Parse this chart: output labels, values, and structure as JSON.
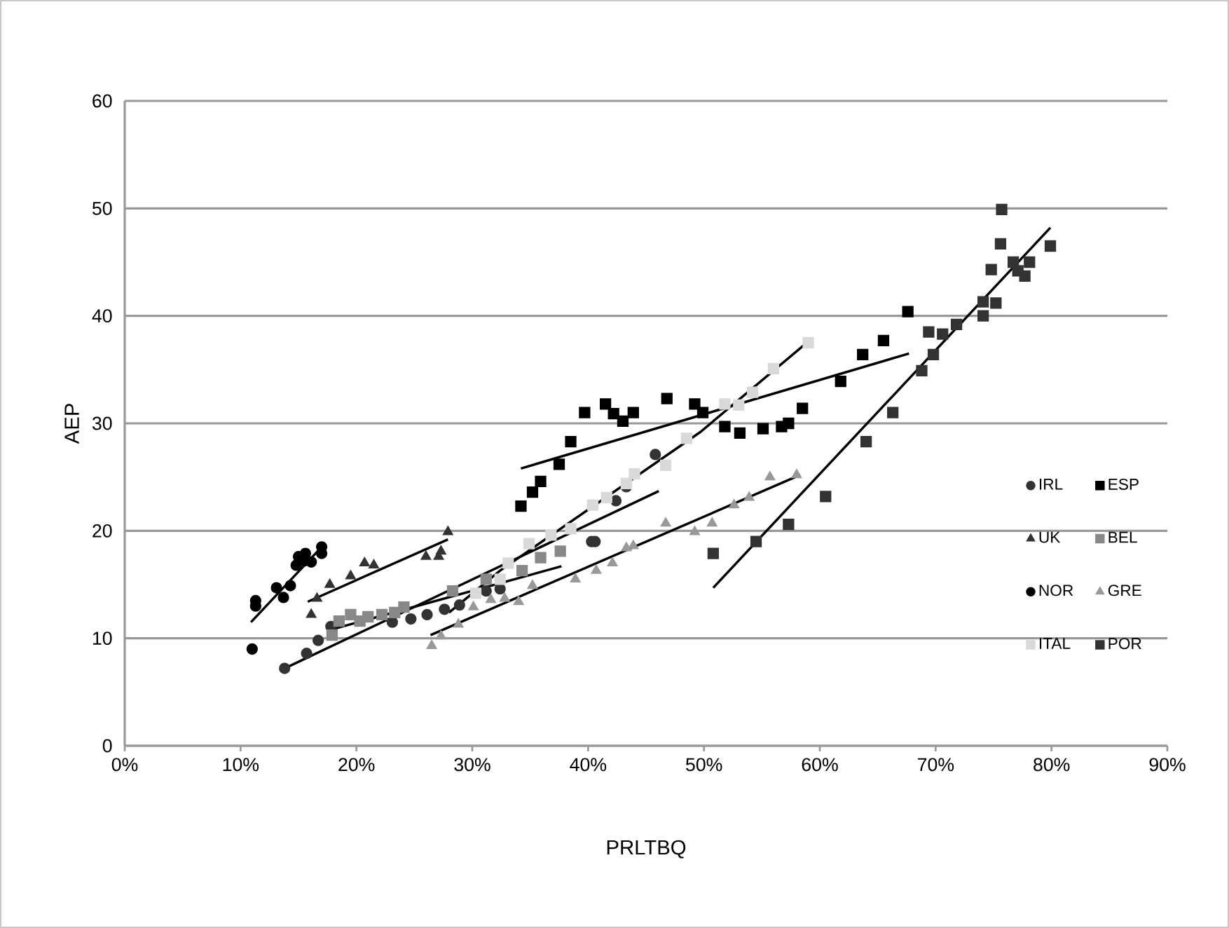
{
  "chart_data": {
    "type": "scatter",
    "xlabel": "PRLTBQ",
    "ylabel": "AEP",
    "xlim": [
      0,
      0.9
    ],
    "ylim": [
      0,
      60
    ],
    "xticks": [
      {
        "value": 0,
        "label": "0%"
      },
      {
        "value": 0.1,
        "label": "10%"
      },
      {
        "value": 0.2,
        "label": "20%"
      },
      {
        "value": 0.3,
        "label": "30%"
      },
      {
        "value": 0.4,
        "label": "40%"
      },
      {
        "value": 0.5,
        "label": "50%"
      },
      {
        "value": 0.6,
        "label": "60%"
      },
      {
        "value": 0.7,
        "label": "70%"
      },
      {
        "value": 0.8,
        "label": "80%"
      },
      {
        "value": 0.9,
        "label": "90%"
      }
    ],
    "yticks": [
      0,
      10,
      20,
      30,
      40,
      50,
      60
    ],
    "grid": "y",
    "legend": "right",
    "series": [
      {
        "name": "IRL",
        "color": "#333333",
        "marker": "circle",
        "x": [
          0.138,
          0.157,
          0.167,
          0.178,
          0.231,
          0.247,
          0.261,
          0.276,
          0.289,
          0.312,
          0.324,
          0.403,
          0.406,
          0.424,
          0.433,
          0.458
        ],
        "values": [
          7.2,
          8.6,
          9.8,
          11.1,
          11.5,
          11.8,
          12.2,
          12.7,
          13.1,
          14.4,
          14.6,
          19.0,
          19.0,
          22.8,
          24.1,
          27.1
        ]
      },
      {
        "name": "ESP",
        "color": "#000000",
        "marker": "square",
        "x": [
          0.342,
          0.352,
          0.359,
          0.375,
          0.385,
          0.397,
          0.415,
          0.422,
          0.43,
          0.439,
          0.468,
          0.492,
          0.499,
          0.518,
          0.531,
          0.551,
          0.567,
          0.573,
          0.585,
          0.618,
          0.637,
          0.655,
          0.676
        ],
        "values": [
          22.3,
          23.6,
          24.6,
          26.2,
          28.3,
          31.0,
          31.8,
          30.9,
          30.2,
          31.0,
          32.3,
          31.8,
          31.0,
          29.7,
          29.1,
          29.5,
          29.7,
          30.0,
          31.4,
          33.9,
          36.4,
          37.7,
          40.4
        ]
      },
      {
        "name": "UK",
        "color": "#333333",
        "marker": "triangle",
        "x": [
          0.161,
          0.166,
          0.177,
          0.195,
          0.207,
          0.215,
          0.26,
          0.271,
          0.273,
          0.279
        ],
        "values": [
          12.2,
          13.7,
          15.0,
          15.8,
          17.0,
          16.8,
          17.6,
          17.6,
          18.1,
          19.9
        ]
      },
      {
        "name": "BEL",
        "color": "#888888",
        "marker": "square",
        "x": [
          0.179,
          0.185,
          0.195,
          0.203,
          0.21,
          0.222,
          0.233,
          0.241,
          0.283,
          0.312,
          0.343,
          0.359,
          0.376
        ],
        "values": [
          10.3,
          11.6,
          12.2,
          11.6,
          12.0,
          12.2,
          12.4,
          12.9,
          14.4,
          15.5,
          16.3,
          17.5,
          18.1
        ]
      },
      {
        "name": "NOR",
        "color": "#000000",
        "marker": "circle",
        "x": [
          0.11,
          0.113,
          0.113,
          0.131,
          0.137,
          0.143,
          0.148,
          0.15,
          0.155,
          0.156,
          0.161,
          0.17,
          0.17
        ],
        "values": [
          9.0,
          13.5,
          13.0,
          14.7,
          13.8,
          14.9,
          16.8,
          17.6,
          17.2,
          17.9,
          17.1,
          18.5,
          17.9
        ]
      },
      {
        "name": "GRE",
        "color": "#999999",
        "marker": "triangle",
        "x": [
          0.265,
          0.273,
          0.288,
          0.301,
          0.316,
          0.328,
          0.34,
          0.352,
          0.389,
          0.407,
          0.421,
          0.433,
          0.439,
          0.467,
          0.492,
          0.507,
          0.526,
          0.539,
          0.557,
          0.58
        ],
        "values": [
          9.3,
          10.2,
          11.3,
          12.9,
          13.6,
          13.7,
          13.4,
          14.9,
          15.5,
          16.3,
          17.0,
          18.4,
          18.6,
          20.7,
          19.9,
          20.7,
          22.4,
          23.1,
          25.0,
          25.2
        ]
      },
      {
        "name": "ITAL",
        "color": "#d9d9d9",
        "marker": "square",
        "x": [
          0.303,
          0.324,
          0.331,
          0.349,
          0.368,
          0.385,
          0.404,
          0.416,
          0.433,
          0.44,
          0.467,
          0.485,
          0.518,
          0.53,
          0.542,
          0.56,
          0.59
        ],
        "values": [
          14.2,
          15.5,
          17.0,
          18.8,
          19.6,
          20.2,
          22.4,
          23.1,
          24.4,
          25.3,
          26.1,
          28.6,
          31.8,
          31.7,
          32.9,
          35.1,
          37.5
        ]
      },
      {
        "name": "POR",
        "color": "#333333",
        "marker": "square",
        "x": [
          0.508,
          0.545,
          0.573,
          0.605,
          0.64,
          0.663,
          0.688,
          0.698,
          0.694,
          0.706,
          0.718,
          0.741,
          0.741,
          0.752,
          0.748,
          0.756,
          0.757,
          0.767,
          0.771,
          0.777,
          0.781,
          0.799
        ],
        "values": [
          17.9,
          19.0,
          20.6,
          23.2,
          28.3,
          31.0,
          34.9,
          36.4,
          38.5,
          38.3,
          39.2,
          40.0,
          41.3,
          41.2,
          44.3,
          46.7,
          49.9,
          45.0,
          44.2,
          43.7,
          45.0,
          46.5
        ]
      },
      {
        "type": "line",
        "color": "#000000",
        "marker": "none",
        "x": [
          0.109,
          0.17
        ],
        "values": [
          11.5,
          18.5
        ]
      },
      {
        "type": "line",
        "color": "#000000",
        "marker": "none",
        "x": [
          0.158,
          0.279
        ],
        "values": [
          13.4,
          19.2
        ]
      },
      {
        "type": "line",
        "color": "#000000",
        "marker": "none",
        "x": [
          0.138,
          0.461
        ],
        "values": [
          7.2,
          23.7
        ]
      },
      {
        "type": "line",
        "color": "#000000",
        "marker": "none",
        "x": [
          0.178,
          0.377
        ],
        "values": [
          10.8,
          16.7
        ]
      },
      {
        "type": "line",
        "color": "#000000",
        "marker": "none",
        "x": [
          0.28,
          0.324,
          0.497,
          0.591
        ],
        "values": [
          12.4,
          16.3,
          29.2,
          37.7
        ]
      },
      {
        "type": "line",
        "color": "#000000",
        "marker": "none",
        "x": [
          0.342,
          0.677
        ],
        "values": [
          25.8,
          36.5
        ]
      },
      {
        "type": "line",
        "color": "#000000",
        "marker": "none",
        "x": [
          0.264,
          0.583
        ],
        "values": [
          10.3,
          25.2
        ]
      },
      {
        "type": "line",
        "color": "#000000",
        "marker": "none",
        "x": [
          0.508,
          0.799
        ],
        "values": [
          14.7,
          48.2
        ]
      }
    ]
  }
}
